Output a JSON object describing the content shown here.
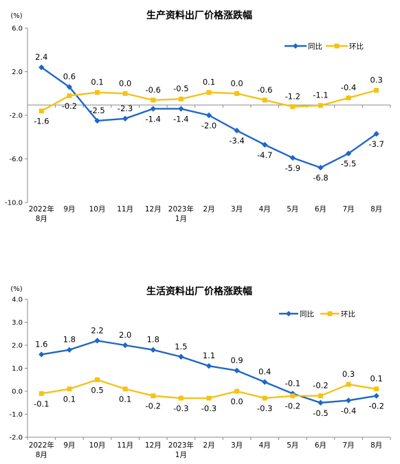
{
  "chart_data": [
    {
      "type": "line",
      "title": "生产资料出厂价格涨跌幅",
      "unit": "(%)",
      "categories": [
        "2022年\n8月",
        "9月",
        "10月",
        "11月",
        "12月",
        "2023年\n1月",
        "2月",
        "3月",
        "4月",
        "5月",
        "6月",
        "7月",
        "8月"
      ],
      "series": [
        {
          "name": "同比",
          "color": "#1F66C8",
          "marker": "diamond",
          "values": [
            2.4,
            0.6,
            -2.5,
            -2.3,
            -1.4,
            -1.4,
            -2.0,
            -3.4,
            -4.7,
            -5.9,
            -6.8,
            -5.5,
            -3.7
          ]
        },
        {
          "name": "环比",
          "color": "#F5C215",
          "marker": "square",
          "values": [
            -1.6,
            -0.2,
            0.1,
            0.0,
            -0.6,
            -0.5,
            0.1,
            0.0,
            -0.6,
            -1.2,
            -1.1,
            -0.4,
            0.3
          ]
        }
      ],
      "yticks": [
        6.0,
        2.0,
        -2.0,
        -6.0,
        -10.0
      ],
      "ytick_labels": [
        "6.0",
        "2.0",
        "-2.0",
        "-6.0",
        "-10.0"
      ],
      "ylim": [
        -10,
        6
      ],
      "grid": false,
      "legend": "top-right"
    },
    {
      "type": "line",
      "title": "生活资料出厂价格涨跌幅",
      "unit": "(%)",
      "categories": [
        "2022年\n8月",
        "9月",
        "10月",
        "11月",
        "12月",
        "2023年\n1月",
        "2月",
        "3月",
        "4月",
        "5月",
        "6月",
        "7月",
        "8月"
      ],
      "series": [
        {
          "name": "同比",
          "color": "#1F66C8",
          "marker": "diamond",
          "values": [
            1.6,
            1.8,
            2.2,
            2.0,
            1.8,
            1.5,
            1.1,
            0.9,
            0.4,
            -0.1,
            -0.5,
            -0.4,
            -0.2
          ]
        },
        {
          "name": "环比",
          "color": "#F5C215",
          "marker": "square",
          "values": [
            -0.1,
            0.1,
            0.5,
            0.1,
            -0.2,
            -0.3,
            -0.3,
            0.0,
            -0.3,
            -0.2,
            -0.2,
            0.3,
            0.1
          ]
        }
      ],
      "yticks": [
        4.0,
        3.0,
        2.0,
        1.0,
        0.0,
        -1.0,
        -2.0
      ],
      "ytick_labels": [
        "4.0",
        "3.0",
        "2.0",
        "1.0",
        "0.0",
        "-1.0",
        "-2.0"
      ],
      "ylim": [
        -2,
        4
      ],
      "grid": false,
      "legend": "top-right"
    }
  ]
}
